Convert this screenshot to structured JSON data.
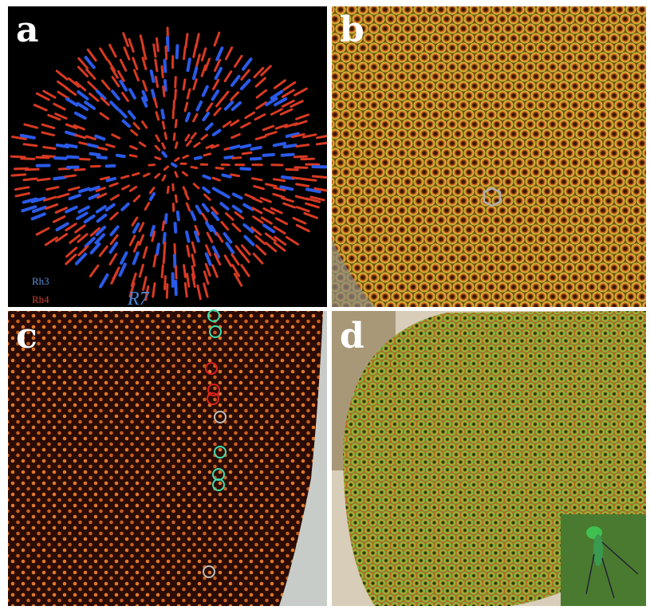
{
  "panels": [
    {
      "label": "a",
      "legend": [
        "Rh3",
        "Rh4"
      ],
      "caption": "R7"
    },
    {
      "label": "b"
    },
    {
      "label": "c"
    },
    {
      "label": "d"
    }
  ]
}
